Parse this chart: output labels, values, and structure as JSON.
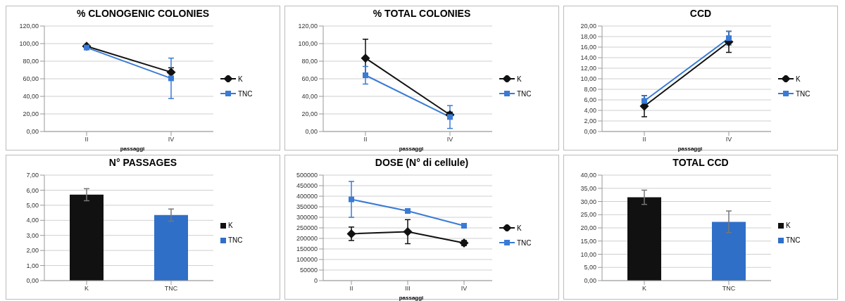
{
  "chart_data": [
    {
      "type": "line",
      "title": "% CLONOGENIC COLONIES",
      "xlabel": "passaggi",
      "categories": [
        "II",
        "IV"
      ],
      "ylim": [
        0,
        120
      ],
      "yticks": [
        {
          "value": 0,
          "label": "0,00"
        },
        {
          "value": 20,
          "label": "20,00"
        },
        {
          "value": 40,
          "label": "40,00"
        },
        {
          "value": 60,
          "label": "60,00"
        },
        {
          "value": 80,
          "label": "80,00"
        },
        {
          "value": 100,
          "label": "100,00"
        },
        {
          "value": 120,
          "label": "120,00"
        }
      ],
      "grid": "y",
      "legend": "right",
      "series": [
        {
          "name": "K",
          "color": "#111111",
          "marker": "diamond",
          "values": [
            97,
            67.5
          ],
          "errors": [
            1,
            5
          ]
        },
        {
          "name": "TNC",
          "color": "#3a7bd5",
          "marker": "square",
          "values": [
            95.5,
            60.5
          ],
          "errors": [
            1,
            23
          ]
        }
      ]
    },
    {
      "type": "line",
      "title": "% TOTAL COLONIES",
      "xlabel": "passaggi",
      "categories": [
        "II",
        "IV"
      ],
      "ylim": [
        0,
        120
      ],
      "yticks": [
        {
          "value": 0,
          "label": "0,00"
        },
        {
          "value": 20,
          "label": "20,00"
        },
        {
          "value": 40,
          "label": "40,00"
        },
        {
          "value": 60,
          "label": "60,00"
        },
        {
          "value": 80,
          "label": "80,00"
        },
        {
          "value": 100,
          "label": "100,00"
        },
        {
          "value": 120,
          "label": "120,00"
        }
      ],
      "grid": "y",
      "legend": "right",
      "series": [
        {
          "name": "K",
          "color": "#111111",
          "marker": "diamond",
          "values": [
            83.5,
            19
          ],
          "errors": [
            21.5,
            3
          ]
        },
        {
          "name": "TNC",
          "color": "#3a7bd5",
          "marker": "square",
          "values": [
            64,
            16.5
          ],
          "errors": [
            10,
            13
          ]
        }
      ]
    },
    {
      "type": "line",
      "title": "CCD",
      "xlabel": "passaggi",
      "categories": [
        "II",
        "IV"
      ],
      "ylim": [
        0,
        20
      ],
      "yticks": [
        {
          "value": 0,
          "label": "0,00"
        },
        {
          "value": 2,
          "label": "2,00"
        },
        {
          "value": 4,
          "label": "4,00"
        },
        {
          "value": 6,
          "label": "6,00"
        },
        {
          "value": 8,
          "label": "8,00"
        },
        {
          "value": 10,
          "label": "10,00"
        },
        {
          "value": 12,
          "label": "12,00"
        },
        {
          "value": 14,
          "label": "14,00"
        },
        {
          "value": 16,
          "label": "16,00"
        },
        {
          "value": 18,
          "label": "18,00"
        },
        {
          "value": 20,
          "label": "20,00"
        }
      ],
      "grid": "y",
      "legend": "right",
      "series": [
        {
          "name": "K",
          "color": "#111111",
          "marker": "diamond",
          "values": [
            4.8,
            17
          ],
          "errors": [
            2,
            2
          ]
        },
        {
          "name": "TNC",
          "color": "#3a7bd5",
          "marker": "square",
          "values": [
            5.8,
            17.7
          ],
          "errors": [
            1,
            1.3
          ]
        }
      ]
    },
    {
      "type": "bar",
      "title": "N° PASSAGES",
      "categories": [
        "K",
        "TNC"
      ],
      "series": [
        {
          "name": "K",
          "color": "#111111",
          "values": [
            5.7,
            null
          ],
          "errors": [
            0.4,
            null
          ]
        },
        {
          "name": "TNC",
          "color": "#2f6fc8",
          "values": [
            null,
            4.35
          ],
          "errors": [
            null,
            0.4
          ]
        }
      ],
      "ylim": [
        0,
        7
      ],
      "yticks": [
        {
          "value": 0,
          "label": "0,00"
        },
        {
          "value": 1,
          "label": "1,00"
        },
        {
          "value": 2,
          "label": "2,00"
        },
        {
          "value": 3,
          "label": "3,00"
        },
        {
          "value": 4,
          "label": "4,00"
        },
        {
          "value": 5,
          "label": "5,00"
        },
        {
          "value": 6,
          "label": "6,00"
        },
        {
          "value": 7,
          "label": "7,00"
        }
      ],
      "grid": "y",
      "legend": "right"
    },
    {
      "type": "line",
      "title": "DOSE (N° di cellule)",
      "xlabel": "passaggi",
      "categories": [
        "II",
        "III",
        "IV"
      ],
      "ylim": [
        0,
        500000
      ],
      "yticks": [
        0,
        50000,
        100000,
        150000,
        200000,
        250000,
        300000,
        350000,
        400000,
        450000,
        500000
      ],
      "grid": "y",
      "legend": "right",
      "series": [
        {
          "name": "K",
          "color": "#111111",
          "marker": "diamond",
          "values": [
            222000,
            232000,
            178000
          ],
          "errors": [
            32000,
            57000,
            12000
          ]
        },
        {
          "name": "TNC",
          "color": "#3a7bd5",
          "marker": "square",
          "values": [
            385000,
            330000,
            260000
          ],
          "errors": [
            85000,
            null,
            null
          ]
        }
      ]
    },
    {
      "type": "bar",
      "title": "TOTAL CCD",
      "categories": [
        "K",
        "TNC"
      ],
      "series": [
        {
          "name": "K",
          "color": "#111111",
          "values": [
            31.6,
            null
          ],
          "errors": [
            2.7,
            null
          ]
        },
        {
          "name": "TNC",
          "color": "#2f6fc8",
          "values": [
            null,
            22.3
          ],
          "errors": [
            null,
            4.1
          ]
        }
      ],
      "ylim": [
        0,
        40
      ],
      "yticks": [
        {
          "value": 0,
          "label": "0,00"
        },
        {
          "value": 5,
          "label": "5,00"
        },
        {
          "value": 10,
          "label": "10,00"
        },
        {
          "value": 15,
          "label": "15,00"
        },
        {
          "value": 20,
          "label": "20,00"
        },
        {
          "value": 25,
          "label": "25,00"
        },
        {
          "value": 30,
          "label": "30,00"
        },
        {
          "value": 35,
          "label": "35,00"
        },
        {
          "value": 40,
          "label": "40,00"
        }
      ],
      "grid": "y",
      "legend": "right"
    }
  ]
}
